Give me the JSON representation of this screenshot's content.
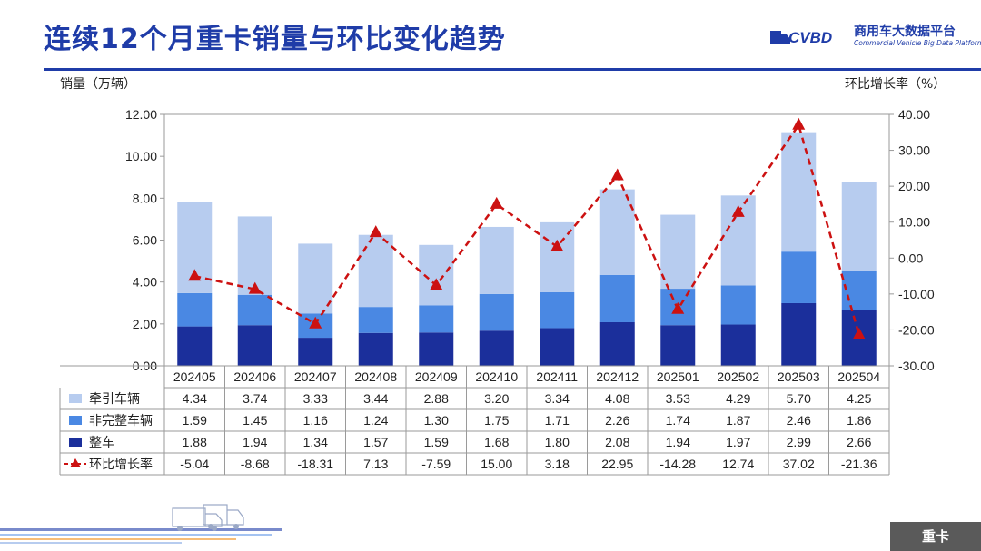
{
  "title": "连续12个月重卡销量与环比变化趋势",
  "logo": {
    "name": "商用车大数据平台",
    "subtitle": "Commercial Vehicle Big Data Platform",
    "mark": "CVBD"
  },
  "axis_left_label": "销量（万辆）",
  "axis_right_label": "环比增长率（%）",
  "tag": "重卡",
  "colors": {
    "title": "#1f3ca8",
    "tractor": "#b7ccef",
    "incomplete": "#4a88e3",
    "complete": "#1b2f9b",
    "mom_line": "#cc1111"
  },
  "chart_data": {
    "type": "bar",
    "stacked": true,
    "categories": [
      "202405",
      "202406",
      "202407",
      "202408",
      "202409",
      "202410",
      "202411",
      "202412",
      "202501",
      "202502",
      "202503",
      "202504"
    ],
    "series": [
      {
        "name": "牵引车辆",
        "values": [
          4.34,
          3.74,
          3.33,
          3.44,
          2.88,
          3.2,
          3.34,
          4.08,
          3.53,
          4.29,
          5.7,
          4.25
        ]
      },
      {
        "name": "非完整车辆",
        "values": [
          1.59,
          1.45,
          1.16,
          1.24,
          1.3,
          1.75,
          1.71,
          2.26,
          1.74,
          1.87,
          2.46,
          1.86
        ]
      },
      {
        "name": "整车",
        "values": [
          1.88,
          1.94,
          1.34,
          1.57,
          1.59,
          1.68,
          1.8,
          2.08,
          1.94,
          1.97,
          2.99,
          2.66
        ]
      }
    ],
    "line_series": {
      "name": "环比增长率",
      "axis": "right",
      "values": [
        -5.04,
        -8.68,
        -18.31,
        7.13,
        -7.59,
        15.0,
        3.18,
        22.95,
        -14.28,
        12.74,
        37.02,
        -21.36
      ]
    },
    "table_values": {
      "tractor": [
        "4.34",
        "3.74",
        "3.33",
        "3.44",
        "2.88",
        "3.20",
        "3.34",
        "4.08",
        "3.53",
        "4.29",
        "5.70",
        "4.25"
      ],
      "incomplete": [
        "1.59",
        "1.45",
        "1.16",
        "1.24",
        "1.30",
        "1.75",
        "1.71",
        "2.26",
        "1.74",
        "1.87",
        "2.46",
        "1.86"
      ],
      "complete": [
        "1.88",
        "1.94",
        "1.34",
        "1.57",
        "1.59",
        "1.68",
        "1.80",
        "2.08",
        "1.94",
        "1.97",
        "2.99",
        "2.66"
      ],
      "mom": [
        "-5.04",
        "-8.68",
        "-18.31",
        "7.13",
        "-7.59",
        "15.00",
        "3.18",
        "22.95",
        "-14.28",
        "12.74",
        "37.02",
        "-21.36"
      ]
    },
    "ylim_left": [
      0,
      12
    ],
    "yticks_left": [
      "0.00",
      "2.00",
      "4.00",
      "6.00",
      "8.00",
      "10.00",
      "12.00"
    ],
    "ylim_right": [
      -30,
      40
    ],
    "yticks_right": [
      "-30.00",
      "-20.00",
      "-10.00",
      "0.00",
      "10.00",
      "20.00",
      "30.00",
      "40.00"
    ],
    "grid": false,
    "legend": "table-left"
  }
}
